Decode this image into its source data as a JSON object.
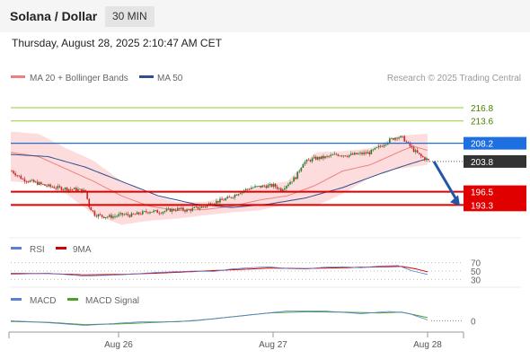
{
  "header": {
    "title": "Solana / Dollar",
    "timeframe": "30 MIN",
    "timestamp": "Thursday, August 28, 2025 2:10:47 AM CET"
  },
  "legend": {
    "ma20": "MA 20 + Bollinger Bands",
    "ma50": "MA 50",
    "copyright": "Research © 2025 Trading Central"
  },
  "colors": {
    "up": "#2e7d32",
    "down": "#c62828",
    "ma20": "#f08080",
    "ma50": "#2f4f8f",
    "band": "#fbd0d0",
    "green_level": "#9acd32",
    "pivot": "#1e6fe0",
    "red_level": "#e00000",
    "current": "#333333",
    "rsi": "#5b7fd6",
    "rsi_ma": "#d00000",
    "macd": "#5b7fd6",
    "macd_signal": "#4aa02c"
  },
  "chart_data": [
    {
      "type": "candlestick",
      "title": "Solana / Dollar",
      "ylim": [
        186,
        222
      ],
      "x_ticks": [
        "Aug 26",
        "Aug 27",
        "Aug 28"
      ],
      "levels": [
        {
          "value": 216.8,
          "label": "216.8",
          "kind": "resistance"
        },
        {
          "value": 213.6,
          "label": "213.6",
          "kind": "resistance"
        },
        {
          "value": 208.2,
          "label": "208.2",
          "kind": "pivot"
        },
        {
          "value": 196.5,
          "label": "196.5",
          "kind": "support"
        },
        {
          "value": 193.3,
          "label": "193.3",
          "kind": "support"
        }
      ],
      "current_price": {
        "value": 203.8,
        "label": "203.8"
      },
      "price_path": [
        [
          0,
          201.5
        ],
        [
          6,
          199.5
        ],
        [
          12,
          198.8
        ],
        [
          18,
          198
        ],
        [
          24,
          197.5
        ],
        [
          30,
          197.2
        ],
        [
          36,
          197
        ],
        [
          40,
          196.5
        ],
        [
          42,
          193
        ],
        [
          45,
          191
        ],
        [
          50,
          190.5
        ],
        [
          55,
          190.5
        ],
        [
          60,
          191
        ],
        [
          65,
          190.8
        ],
        [
          70,
          191.3
        ],
        [
          75,
          191.8
        ],
        [
          80,
          191.6
        ],
        [
          85,
          192
        ],
        [
          90,
          192.3
        ],
        [
          95,
          192
        ],
        [
          100,
          192.5
        ],
        [
          105,
          193
        ],
        [
          108,
          193.8
        ],
        [
          112,
          194.2
        ],
        [
          118,
          195
        ],
        [
          124,
          196.5
        ],
        [
          130,
          197.5
        ],
        [
          136,
          197.8
        ],
        [
          142,
          198
        ],
        [
          146,
          197
        ],
        [
          150,
          198.5
        ],
        [
          154,
          200
        ],
        [
          158,
          203.5
        ],
        [
          164,
          204.5
        ],
        [
          170,
          204.8
        ],
        [
          176,
          205.5
        ],
        [
          182,
          205.3
        ],
        [
          188,
          205.6
        ],
        [
          194,
          205.9
        ],
        [
          200,
          207.5
        ],
        [
          205,
          209
        ],
        [
          209,
          209.8
        ],
        [
          212,
          209.5
        ],
        [
          215,
          208
        ],
        [
          218,
          206.5
        ],
        [
          222,
          205
        ],
        [
          226,
          204
        ]
      ],
      "ma20_path": [
        [
          0,
          206
        ],
        [
          15,
          205
        ],
        [
          30,
          202
        ],
        [
          45,
          199
        ],
        [
          60,
          195.5
        ],
        [
          75,
          193
        ],
        [
          90,
          192
        ],
        [
          105,
          192.2
        ],
        [
          120,
          193
        ],
        [
          135,
          194.5
        ],
        [
          150,
          195.5
        ],
        [
          165,
          198
        ],
        [
          180,
          201.5
        ],
        [
          195,
          203
        ],
        [
          210,
          206
        ],
        [
          218,
          207.5
        ],
        [
          226,
          206.5
        ]
      ],
      "ma50_path": [
        [
          0,
          205.5
        ],
        [
          20,
          205
        ],
        [
          40,
          202.5
        ],
        [
          60,
          199
        ],
        [
          80,
          195.5
        ],
        [
          100,
          193.5
        ],
        [
          120,
          192.7
        ],
        [
          140,
          193.5
        ],
        [
          160,
          195
        ],
        [
          180,
          197.5
        ],
        [
          200,
          200.8
        ],
        [
          215,
          203
        ],
        [
          226,
          204.5
        ]
      ],
      "band_upper": [
        [
          0,
          211
        ],
        [
          15,
          210.5
        ],
        [
          30,
          207
        ],
        [
          45,
          204
        ],
        [
          60,
          199
        ],
        [
          75,
          196
        ],
        [
          90,
          194
        ],
        [
          105,
          194
        ],
        [
          120,
          195.5
        ],
        [
          135,
          198
        ],
        [
          150,
          199
        ],
        [
          165,
          206
        ],
        [
          180,
          206.3
        ],
        [
          195,
          207
        ],
        [
          210,
          210
        ],
        [
          226,
          210.5
        ]
      ],
      "band_lower": [
        [
          0,
          199
        ],
        [
          15,
          198.5
        ],
        [
          30,
          196
        ],
        [
          45,
          191
        ],
        [
          60,
          188.5
        ],
        [
          75,
          189.5
        ],
        [
          90,
          190
        ],
        [
          105,
          190.8
        ],
        [
          120,
          191.5
        ],
        [
          135,
          192
        ],
        [
          150,
          193.5
        ],
        [
          165,
          193
        ],
        [
          180,
          196
        ],
        [
          195,
          200
        ],
        [
          210,
          202
        ],
        [
          226,
          203
        ]
      ]
    },
    {
      "type": "line",
      "name": "RSI",
      "series": [
        {
          "name": "RSI"
        },
        {
          "name": "9MA"
        }
      ],
      "ylim": [
        20,
        80
      ],
      "ticks": [
        70,
        50,
        30
      ],
      "rsi": [
        [
          0,
          42
        ],
        [
          20,
          45
        ],
        [
          40,
          38
        ],
        [
          60,
          41
        ],
        [
          80,
          47
        ],
        [
          100,
          50
        ],
        [
          110,
          49
        ],
        [
          120,
          55
        ],
        [
          130,
          58
        ],
        [
          140,
          60
        ],
        [
          150,
          56
        ],
        [
          160,
          55
        ],
        [
          170,
          59
        ],
        [
          180,
          60
        ],
        [
          190,
          58
        ],
        [
          200,
          62
        ],
        [
          210,
          63
        ],
        [
          218,
          50
        ],
        [
          226,
          42
        ]
      ],
      "ma9": [
        [
          0,
          44
        ],
        [
          20,
          44
        ],
        [
          40,
          41
        ],
        [
          60,
          42
        ],
        [
          80,
          45
        ],
        [
          100,
          49
        ],
        [
          120,
          53
        ],
        [
          140,
          57
        ],
        [
          160,
          56
        ],
        [
          180,
          58
        ],
        [
          200,
          60
        ],
        [
          212,
          61
        ],
        [
          220,
          55
        ],
        [
          226,
          48
        ]
      ]
    },
    {
      "type": "line",
      "name": "MACD",
      "series": [
        {
          "name": "MACD"
        },
        {
          "name": "MACD Signal"
        }
      ],
      "ylim": [
        -2,
        4
      ],
      "ticks": [
        0
      ],
      "macd": [
        [
          0,
          0
        ],
        [
          20,
          -0.5
        ],
        [
          40,
          -1.2
        ],
        [
          50,
          -0.9
        ],
        [
          70,
          -0.3
        ],
        [
          90,
          -0.3
        ],
        [
          110,
          0.5
        ],
        [
          130,
          1.5
        ],
        [
          150,
          2.5
        ],
        [
          170,
          2.5
        ],
        [
          190,
          1.8
        ],
        [
          205,
          2.4
        ],
        [
          215,
          2.0
        ],
        [
          226,
          0.2
        ]
      ],
      "signal": [
        [
          0,
          -0.2
        ],
        [
          20,
          -0.4
        ],
        [
          40,
          -1.0
        ],
        [
          60,
          -0.8
        ],
        [
          80,
          -0.4
        ],
        [
          100,
          0.0
        ],
        [
          120,
          1.0
        ],
        [
          140,
          2.0
        ],
        [
          160,
          2.3
        ],
        [
          180,
          2.2
        ],
        [
          200,
          2.0
        ],
        [
          212,
          2.2
        ],
        [
          226,
          0.8
        ]
      ]
    }
  ]
}
